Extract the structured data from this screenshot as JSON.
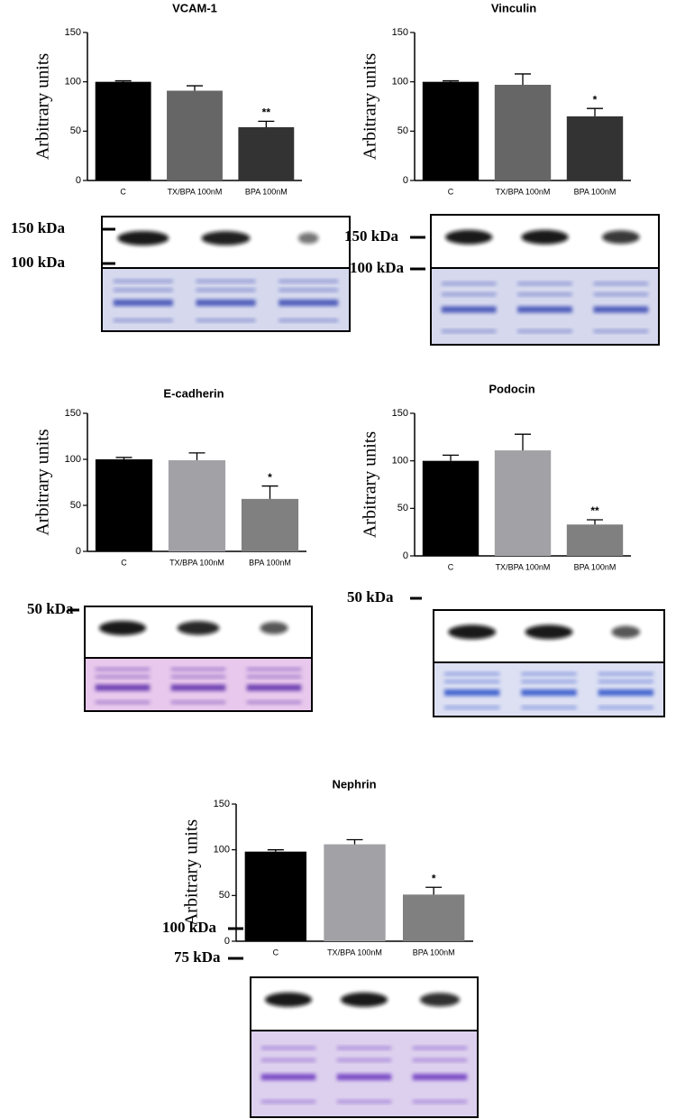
{
  "chart_data": [
    {
      "type": "bar",
      "title": "VCAM-1",
      "y_label": "Arbitrary units",
      "categories": [
        "C",
        "TX/BPA 100nM",
        "BPA 100nM"
      ],
      "values": [
        100,
        91,
        54
      ],
      "errors": [
        1,
        5,
        6
      ],
      "value_annotations": [
        null,
        null,
        "**"
      ],
      "colors": [
        "#000000",
        "#666666",
        "#333333"
      ],
      "ylim": [
        0,
        150
      ],
      "yticks": [
        0,
        50,
        100,
        150
      ],
      "blot_labels": [
        "150 kDa",
        "100 kDa"
      ]
    },
    {
      "type": "bar",
      "title": "Vinculin",
      "y_label": "Arbitrary units",
      "categories": [
        "C",
        "TX/BPA 100nM",
        "BPA 100nM"
      ],
      "values": [
        100,
        97,
        65
      ],
      "errors": [
        1,
        11,
        8
      ],
      "value_annotations": [
        null,
        null,
        "*"
      ],
      "colors": [
        "#000000",
        "#666666",
        "#333333"
      ],
      "ylim": [
        0,
        150
      ],
      "yticks": [
        0,
        50,
        100,
        150
      ],
      "blot_labels": [
        "150 kDa",
        "100 kDa"
      ]
    },
    {
      "type": "bar",
      "title": "E-cadherin",
      "y_label": "Arbitrary units",
      "categories": [
        "C",
        "TX/BPA 100nM",
        "BPA 100nM"
      ],
      "values": [
        100,
        99,
        57
      ],
      "errors": [
        2,
        8,
        14
      ],
      "value_annotations": [
        null,
        null,
        "*"
      ],
      "colors": [
        "#000000",
        "#a2a2a6",
        "#808080"
      ],
      "ylim": [
        0,
        150
      ],
      "yticks": [
        0,
        50,
        100,
        150
      ],
      "blot_labels": [
        "50 kDa"
      ]
    },
    {
      "type": "bar",
      "title": "Podocin",
      "y_label": "Arbitrary units",
      "categories": [
        "C",
        "TX/BPA 100nM",
        "BPA 100nM"
      ],
      "values": [
        100,
        111,
        33
      ],
      "errors": [
        6,
        17,
        5
      ],
      "value_annotations": [
        null,
        null,
        "**"
      ],
      "colors": [
        "#000000",
        "#a2a2a6",
        "#808080"
      ],
      "ylim": [
        0,
        150
      ],
      "yticks": [
        0,
        50,
        100,
        150
      ],
      "blot_labels": [
        "50 kDa"
      ]
    },
    {
      "type": "bar",
      "title": "Nephrin",
      "y_label": "Arbitrary units",
      "categories": [
        "C",
        "TX/BPA 100nM",
        "BPA 100nM"
      ],
      "values": [
        98,
        106,
        51
      ],
      "errors": [
        2,
        5,
        8
      ],
      "value_annotations": [
        null,
        null,
        "*"
      ],
      "colors": [
        "#000000",
        "#a2a2a6",
        "#808080"
      ],
      "ylim": [
        0,
        150
      ],
      "yticks": [
        0,
        50,
        100,
        150
      ],
      "blot_labels": [
        "100 kDa",
        "75 kDa"
      ]
    }
  ]
}
